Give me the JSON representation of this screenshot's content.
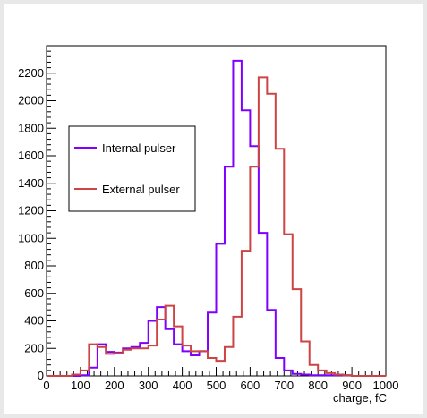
{
  "chart_data": {
    "type": "histogram",
    "title": "",
    "xlabel": "charge, fC",
    "ylabel": "",
    "xlim": [
      0,
      1000
    ],
    "ylim": [
      0,
      2400
    ],
    "x_ticks": [
      0,
      100,
      200,
      300,
      400,
      500,
      600,
      700,
      800,
      900,
      1000
    ],
    "y_ticks": [
      0,
      200,
      400,
      600,
      800,
      1000,
      1200,
      1400,
      1600,
      1800,
      2000,
      2200
    ],
    "bin_width": 25,
    "bin_start": 0,
    "legend_position": "left-middle",
    "series": [
      {
        "name": "Internal pulser",
        "color": "#7f00ff",
        "values": [
          0,
          0,
          0,
          0,
          5,
          60,
          230,
          175,
          170,
          200,
          210,
          240,
          400,
          500,
          340,
          230,
          180,
          150,
          180,
          460,
          960,
          1520,
          2290,
          1930,
          1670,
          1040,
          480,
          130,
          40,
          15,
          10,
          5,
          5,
          5,
          5,
          5,
          0,
          0,
          0,
          0
        ]
      },
      {
        "name": "External pulser",
        "color": "#cc4444",
        "values": [
          0,
          0,
          0,
          10,
          40,
          230,
          210,
          160,
          165,
          190,
          200,
          200,
          220,
          410,
          510,
          360,
          220,
          180,
          180,
          130,
          110,
          210,
          430,
          910,
          1520,
          2170,
          2050,
          1650,
          1030,
          630,
          250,
          80,
          40,
          20,
          10,
          5,
          0,
          0,
          0,
          0
        ]
      }
    ]
  }
}
